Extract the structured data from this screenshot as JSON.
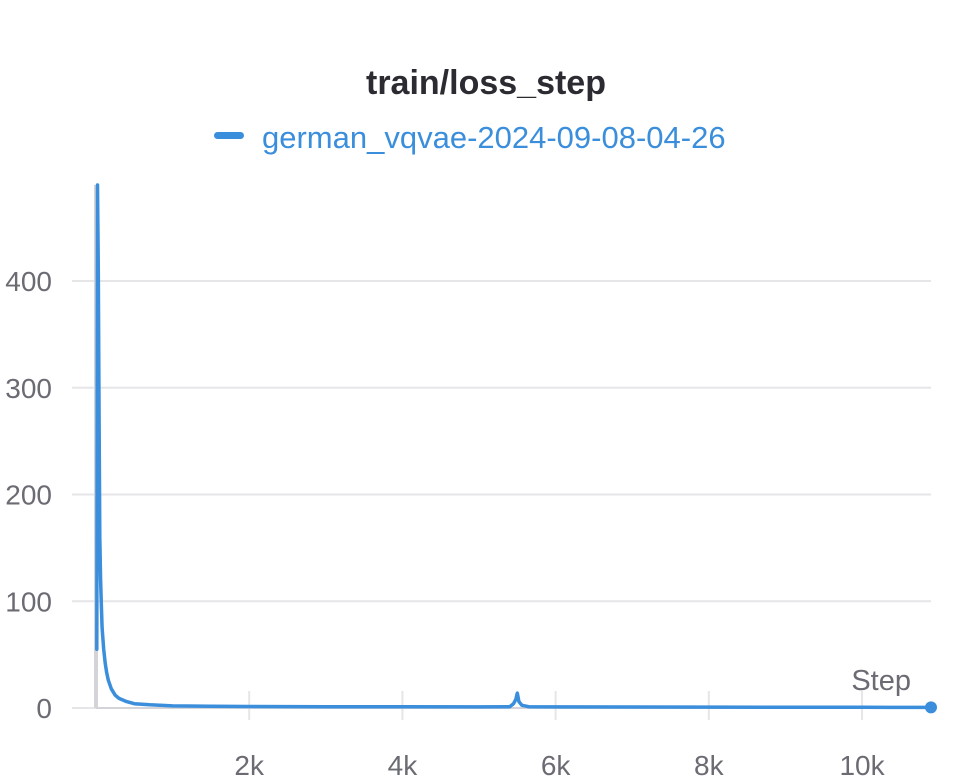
{
  "chart_data": {
    "type": "line",
    "title": "train/loss_step",
    "xlabel": "Step",
    "ylabel": "",
    "xlim": [
      0,
      10900
    ],
    "ylim": [
      0,
      490
    ],
    "x_ticks": [
      {
        "value": 2000,
        "label": "2k"
      },
      {
        "value": 4000,
        "label": "4k"
      },
      {
        "value": 6000,
        "label": "6k"
      },
      {
        "value": 8000,
        "label": "8k"
      },
      {
        "value": 10000,
        "label": "10k"
      }
    ],
    "y_ticks": [
      {
        "value": 0,
        "label": "0"
      },
      {
        "value": 100,
        "label": "100"
      },
      {
        "value": 200,
        "label": "200"
      },
      {
        "value": 300,
        "label": "300"
      },
      {
        "value": 400,
        "label": "400"
      }
    ],
    "grid": true,
    "legend_position": "top-center",
    "series": [
      {
        "name": "german_vqvae-2024-09-08-04-26",
        "color": "#3a8edb",
        "x": [
          10,
          20,
          30,
          40,
          50,
          60,
          70,
          80,
          100,
          120,
          140,
          160,
          200,
          250,
          300,
          400,
          500,
          700,
          1000,
          1500,
          2000,
          3000,
          4000,
          5000,
          5400,
          5450,
          5480,
          5500,
          5520,
          5560,
          5650,
          6000,
          7000,
          8000,
          9000,
          10000,
          10900
        ],
        "y": [
          55,
          490,
          410,
          270,
          160,
          120,
          95,
          75,
          55,
          42,
          33,
          26,
          18,
          12,
          9,
          6,
          4,
          3,
          2,
          1.6,
          1.4,
          1.2,
          1.1,
          1.0,
          1.2,
          4,
          8,
          14,
          6,
          2.5,
          1.2,
          1.0,
          0.9,
          0.8,
          0.7,
          0.7,
          0.6
        ]
      }
    ]
  }
}
